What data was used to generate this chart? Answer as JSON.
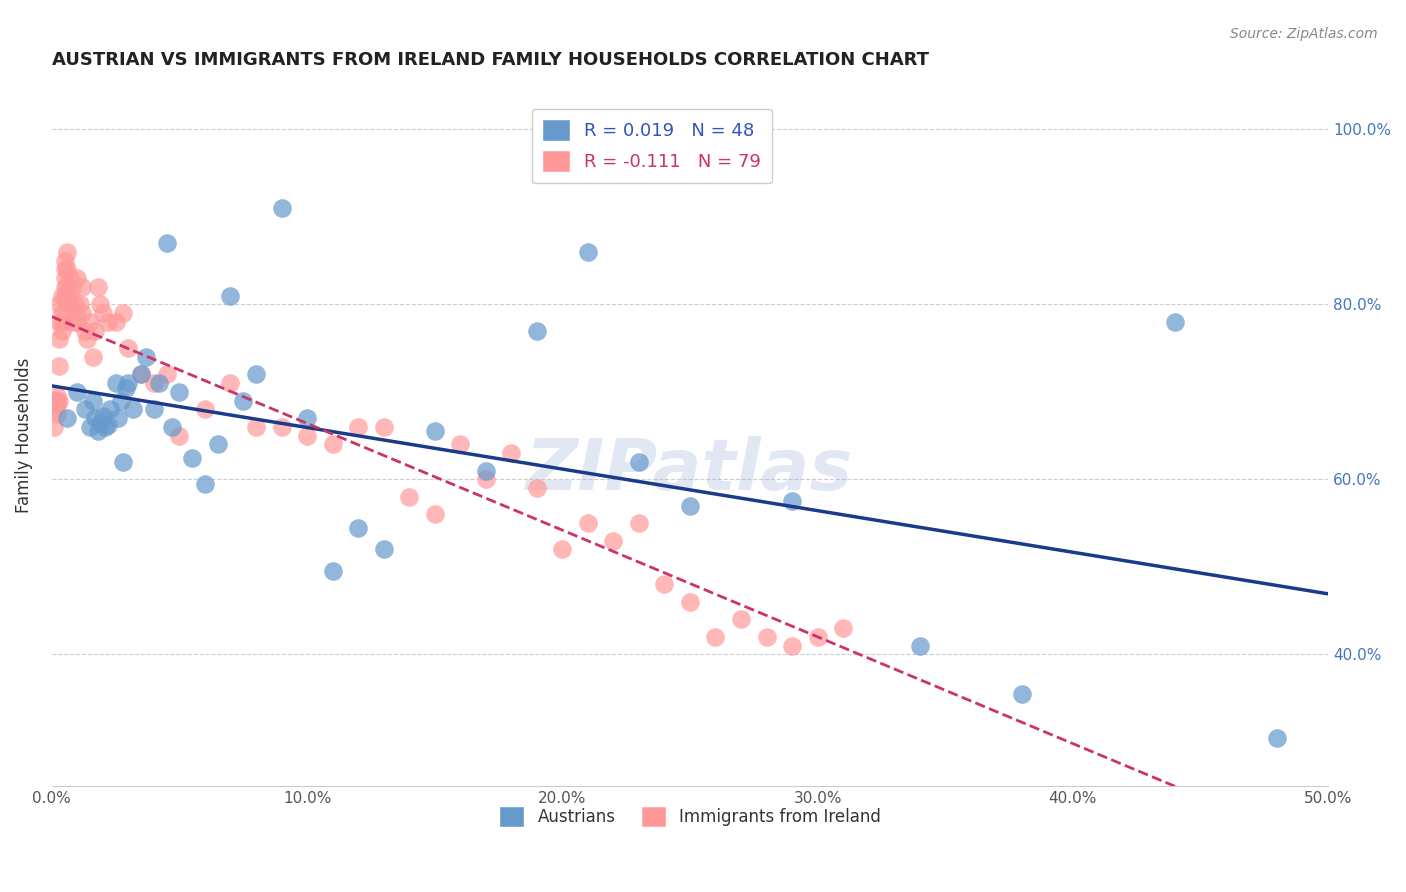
{
  "title": "AUSTRIAN VS IMMIGRANTS FROM IRELAND FAMILY HOUSEHOLDS CORRELATION CHART",
  "source": "Source: ZipAtlas.com",
  "xlabel_blue": "Austrians",
  "xlabel_pink": "Immigrants from Ireland",
  "ylabel": "Family Households",
  "xlim": [
    0.0,
    0.5
  ],
  "ylim": [
    0.25,
    1.05
  ],
  "x_ticks": [
    0.0,
    0.1,
    0.2,
    0.3,
    0.4,
    0.5
  ],
  "x_tick_labels": [
    "0.0%",
    "10.0%",
    "20.0%",
    "30.0%",
    "40.0%",
    "50.0%"
  ],
  "y_ticks": [
    0.4,
    0.6,
    0.8,
    1.0
  ],
  "y_tick_labels": [
    "40.0%",
    "60.0%",
    "80.0%",
    "100.0%"
  ],
  "blue_color": "#6699CC",
  "pink_color": "#FF9999",
  "line_blue": "#1a3a8a",
  "line_pink": "#CC3366",
  "legend_r_blue": "R = 0.019",
  "legend_n_blue": "N = 48",
  "legend_r_pink": "R = -0.111",
  "legend_n_pink": "N = 79",
  "blue_x": [
    0.006,
    0.01,
    0.013,
    0.015,
    0.016,
    0.017,
    0.018,
    0.019,
    0.02,
    0.021,
    0.022,
    0.023,
    0.025,
    0.026,
    0.027,
    0.028,
    0.029,
    0.03,
    0.032,
    0.035,
    0.037,
    0.04,
    0.042,
    0.045,
    0.047,
    0.05,
    0.055,
    0.06,
    0.065,
    0.07,
    0.075,
    0.08,
    0.09,
    0.1,
    0.11,
    0.12,
    0.13,
    0.15,
    0.17,
    0.19,
    0.21,
    0.23,
    0.25,
    0.29,
    0.34,
    0.38,
    0.44,
    0.48
  ],
  "blue_y": [
    0.67,
    0.7,
    0.68,
    0.66,
    0.69,
    0.67,
    0.655,
    0.665,
    0.672,
    0.66,
    0.662,
    0.68,
    0.71,
    0.67,
    0.69,
    0.62,
    0.705,
    0.71,
    0.68,
    0.72,
    0.74,
    0.68,
    0.71,
    0.87,
    0.66,
    0.7,
    0.625,
    0.595,
    0.64,
    0.81,
    0.69,
    0.72,
    0.91,
    0.67,
    0.495,
    0.545,
    0.52,
    0.655,
    0.61,
    0.77,
    0.86,
    0.62,
    0.57,
    0.575,
    0.41,
    0.355,
    0.78,
    0.305
  ],
  "pink_x": [
    0.001,
    0.001,
    0.001,
    0.002,
    0.002,
    0.002,
    0.002,
    0.003,
    0.003,
    0.003,
    0.003,
    0.003,
    0.004,
    0.004,
    0.004,
    0.004,
    0.005,
    0.005,
    0.005,
    0.005,
    0.005,
    0.006,
    0.006,
    0.006,
    0.006,
    0.007,
    0.007,
    0.007,
    0.008,
    0.008,
    0.009,
    0.009,
    0.01,
    0.01,
    0.011,
    0.012,
    0.012,
    0.013,
    0.014,
    0.015,
    0.016,
    0.017,
    0.018,
    0.019,
    0.02,
    0.022,
    0.025,
    0.028,
    0.03,
    0.035,
    0.04,
    0.045,
    0.05,
    0.06,
    0.07,
    0.08,
    0.09,
    0.1,
    0.11,
    0.12,
    0.13,
    0.14,
    0.15,
    0.16,
    0.17,
    0.18,
    0.19,
    0.2,
    0.21,
    0.22,
    0.23,
    0.24,
    0.25,
    0.26,
    0.27,
    0.28,
    0.29,
    0.3,
    0.31
  ],
  "pink_y": [
    0.68,
    0.69,
    0.66,
    0.685,
    0.69,
    0.695,
    0.675,
    0.69,
    0.73,
    0.78,
    0.8,
    0.76,
    0.77,
    0.78,
    0.79,
    0.81,
    0.81,
    0.83,
    0.82,
    0.84,
    0.85,
    0.86,
    0.84,
    0.82,
    0.8,
    0.81,
    0.83,
    0.8,
    0.82,
    0.78,
    0.79,
    0.8,
    0.83,
    0.78,
    0.8,
    0.82,
    0.79,
    0.77,
    0.76,
    0.78,
    0.74,
    0.77,
    0.82,
    0.8,
    0.79,
    0.78,
    0.78,
    0.79,
    0.75,
    0.72,
    0.71,
    0.72,
    0.65,
    0.68,
    0.71,
    0.66,
    0.66,
    0.65,
    0.64,
    0.66,
    0.66,
    0.58,
    0.56,
    0.64,
    0.6,
    0.63,
    0.59,
    0.52,
    0.55,
    0.53,
    0.55,
    0.48,
    0.46,
    0.42,
    0.44,
    0.42,
    0.41,
    0.42,
    0.43
  ],
  "watermark": "ZIPatlas"
}
